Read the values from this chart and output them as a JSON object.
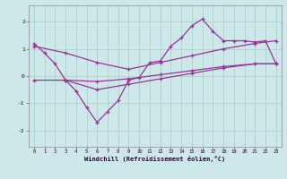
{
  "xlabel": "Windchill (Refroidissement éolien,°C)",
  "bg_color": "#cce8e8",
  "grid_color": "#aacccc",
  "line_color": "#993399",
  "xlim": [
    -0.5,
    23.5
  ],
  "ylim": [
    -2.6,
    2.6
  ],
  "xticks": [
    0,
    1,
    2,
    3,
    4,
    5,
    6,
    7,
    8,
    9,
    10,
    11,
    12,
    13,
    14,
    15,
    16,
    17,
    18,
    19,
    20,
    21,
    22,
    23
  ],
  "yticks": [
    -2,
    -1,
    0,
    1,
    2
  ],
  "line1_x": [
    0,
    1,
    2,
    3,
    4,
    5,
    6,
    7,
    8,
    9,
    10,
    11,
    12,
    13,
    14,
    15,
    16,
    17,
    18,
    19,
    20,
    21,
    22,
    23
  ],
  "line1_y": [
    1.2,
    0.85,
    0.45,
    -0.15,
    -0.55,
    -1.15,
    -1.7,
    -1.3,
    -0.9,
    -0.15,
    -0.05,
    0.5,
    0.55,
    1.1,
    1.4,
    1.85,
    2.1,
    1.65,
    1.3,
    1.3,
    1.3,
    1.25,
    1.3,
    0.45
  ],
  "line2_x": [
    0,
    3,
    6,
    9,
    12,
    15,
    18,
    21,
    23
  ],
  "line2_y": [
    1.1,
    0.85,
    0.5,
    0.25,
    0.5,
    0.75,
    1.0,
    1.2,
    1.3
  ],
  "line3_x": [
    0,
    3,
    6,
    9,
    12,
    15,
    18,
    21,
    23
  ],
  "line3_y": [
    -0.15,
    -0.15,
    -0.2,
    -0.1,
    0.05,
    0.2,
    0.35,
    0.45,
    0.45
  ],
  "line4_x": [
    3,
    6,
    9,
    12,
    15,
    18,
    21,
    23
  ],
  "line4_y": [
    -0.15,
    -0.5,
    -0.3,
    -0.1,
    0.1,
    0.3,
    0.45,
    0.45
  ]
}
